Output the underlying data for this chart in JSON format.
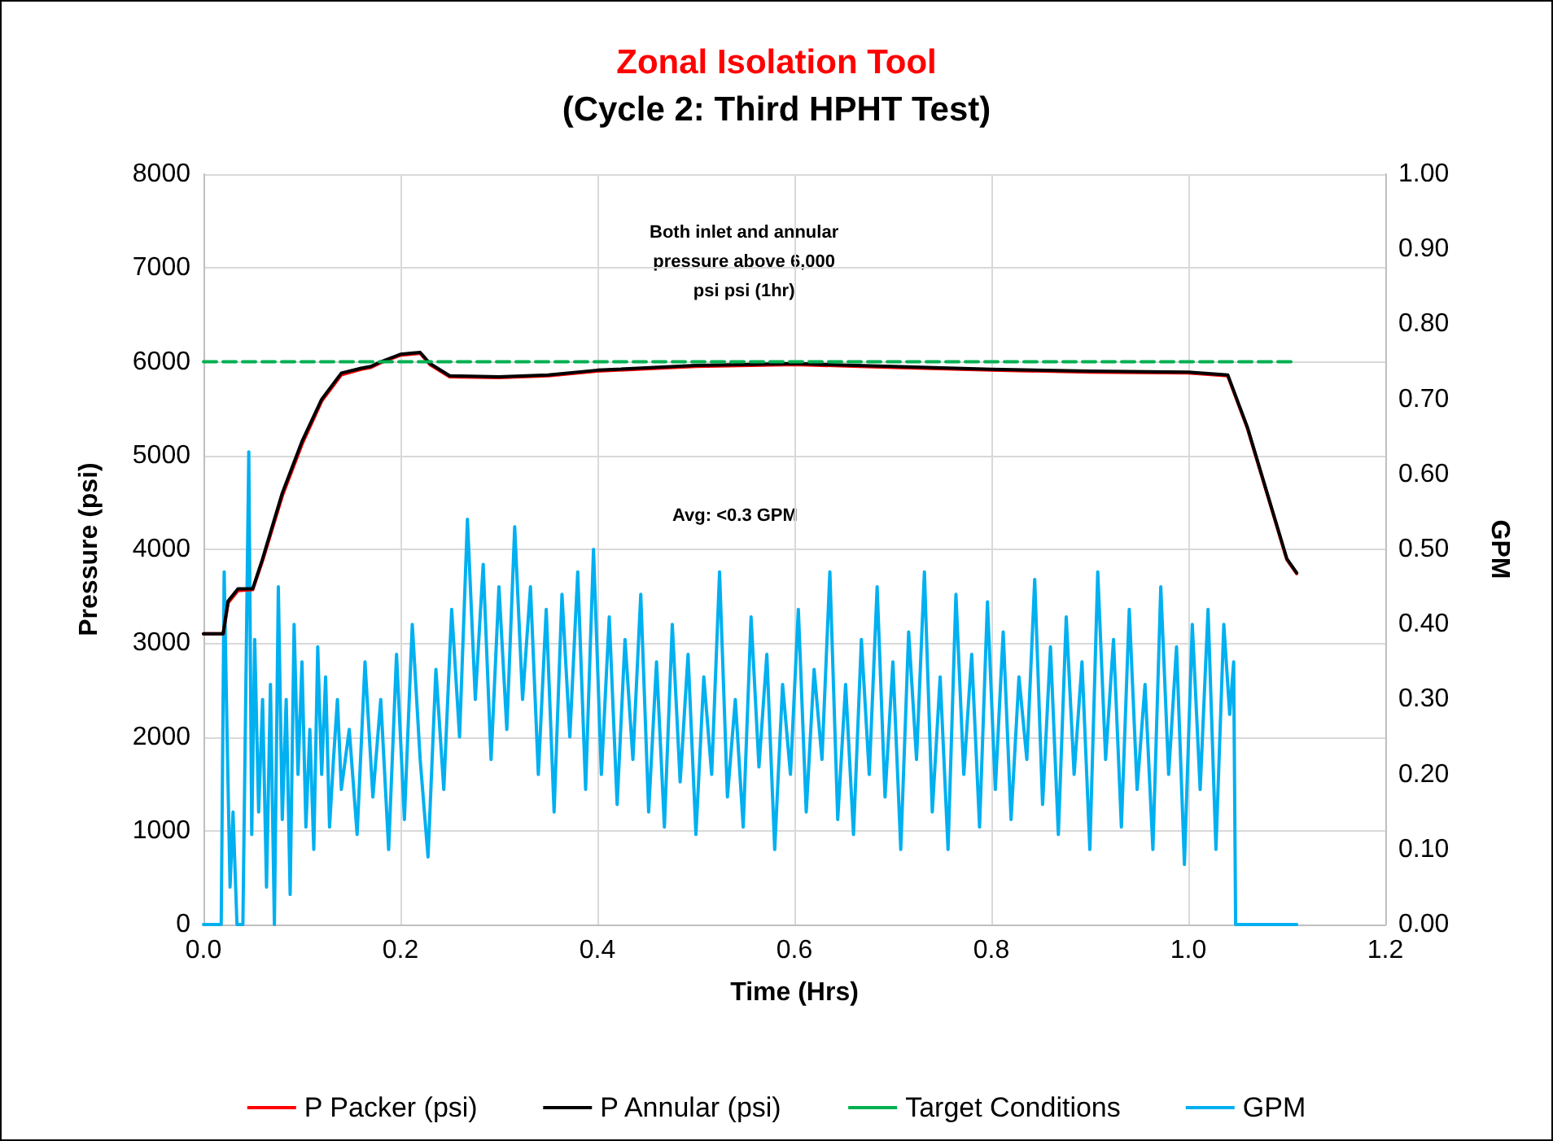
{
  "chart_data": {
    "type": "line",
    "title": "Zonal Isolation Tool",
    "subtitle": "(Cycle 2: Third HPHT Test)",
    "xlabel": "Time (Hrs)",
    "ylabel": "Pressure (psi)",
    "y2label": "GPM",
    "annotations": [
      "Both inlet and annular\npressure above 6,000\npsi psi (1hr)",
      "Avg: <0.3 GPM"
    ],
    "xlim": [
      0,
      1.2
    ],
    "xticks": [
      {
        "value": 0,
        "label": "0.0"
      },
      {
        "value": 0.2,
        "label": "0.2"
      },
      {
        "value": 0.4,
        "label": "0.4"
      },
      {
        "value": 0.6,
        "label": "0.6"
      },
      {
        "value": 0.8,
        "label": "0.8"
      },
      {
        "value": 1.0,
        "label": "1.0"
      },
      {
        "value": 1.2,
        "label": "1.2"
      }
    ],
    "ylim": [
      0,
      8000
    ],
    "yticks": [
      0,
      1000,
      2000,
      3000,
      4000,
      5000,
      6000,
      7000,
      8000
    ],
    "y2lim": [
      0,
      1
    ],
    "y2ticks": [
      {
        "value": 0,
        "label": "0.00"
      },
      {
        "value": 0.1,
        "label": "0.10"
      },
      {
        "value": 0.2,
        "label": "0.20"
      },
      {
        "value": 0.3,
        "label": "0.30"
      },
      {
        "value": 0.4,
        "label": "0.40"
      },
      {
        "value": 0.5,
        "label": "0.50"
      },
      {
        "value": 0.6,
        "label": "0.60"
      },
      {
        "value": 0.7,
        "label": "0.70"
      },
      {
        "value": 0.8,
        "label": "0.80"
      },
      {
        "value": 0.9,
        "label": "0.90"
      },
      {
        "value": 1.0,
        "label": "1.00"
      }
    ],
    "grid": true,
    "legend": "bottom",
    "marker": "none",
    "series": [
      {
        "name": "P Packer (psi)",
        "color": "#ff0000",
        "line_style": "solid",
        "x": [
          0,
          0.02,
          0.025,
          0.035,
          0.05,
          0.06,
          0.08,
          0.1,
          0.12,
          0.14,
          0.16,
          0.17,
          0.18,
          0.2,
          0.22,
          0.23,
          0.25,
          0.3,
          0.35,
          0.4,
          0.5,
          0.6,
          0.7,
          0.8,
          0.9,
          1.0,
          1.04,
          1.06,
          1.08,
          1.1,
          1.11
        ],
        "values": [
          3100,
          3100,
          3430,
          3560,
          3570,
          3880,
          4570,
          5120,
          5580,
          5860,
          5920,
          5940,
          5990,
          6070,
          6090,
          5970,
          5840,
          5830,
          5850,
          5900,
          5950,
          5970,
          5940,
          5910,
          5890,
          5880,
          5850,
          5290,
          4590,
          3890,
          3740
        ]
      },
      {
        "name": "P Annular (psi)",
        "color": "#000000",
        "line_style": "solid",
        "x": [
          0,
          0.02,
          0.025,
          0.035,
          0.05,
          0.06,
          0.08,
          0.1,
          0.12,
          0.14,
          0.16,
          0.17,
          0.18,
          0.2,
          0.22,
          0.23,
          0.25,
          0.3,
          0.35,
          0.4,
          0.5,
          0.6,
          0.7,
          0.8,
          0.9,
          1.0,
          1.04,
          1.06,
          1.08,
          1.1,
          1.11
        ],
        "values": [
          3100,
          3100,
          3450,
          3580,
          3580,
          3900,
          4600,
          5150,
          5600,
          5880,
          5930,
          5950,
          6000,
          6080,
          6100,
          5980,
          5850,
          5840,
          5860,
          5910,
          5960,
          5980,
          5950,
          5920,
          5900,
          5890,
          5860,
          5300,
          4600,
          3900,
          3750
        ]
      },
      {
        "name": "Target Conditions",
        "color": "#00b050",
        "line_style": "dashed",
        "x": [
          0,
          1.11
        ],
        "values": [
          6000,
          6000
        ]
      },
      {
        "name": "GPM",
        "color": "#00b0f0",
        "line_style": "solid",
        "axis": "y2",
        "x": [
          0,
          0.018,
          0.021,
          0.024,
          0.027,
          0.03,
          0.034,
          0.04,
          0.046,
          0.049,
          0.052,
          0.056,
          0.06,
          0.064,
          0.068,
          0.072,
          0.076,
          0.08,
          0.084,
          0.088,
          0.092,
          0.096,
          0.1,
          0.104,
          0.108,
          0.112,
          0.116,
          0.12,
          0.124,
          0.128,
          0.132,
          0.136,
          0.14,
          0.148,
          0.156,
          0.164,
          0.172,
          0.18,
          0.188,
          0.196,
          0.204,
          0.212,
          0.22,
          0.228,
          0.236,
          0.244,
          0.252,
          0.26,
          0.268,
          0.276,
          0.284,
          0.292,
          0.3,
          0.308,
          0.316,
          0.324,
          0.332,
          0.34,
          0.348,
          0.356,
          0.364,
          0.372,
          0.38,
          0.388,
          0.396,
          0.404,
          0.412,
          0.42,
          0.428,
          0.436,
          0.444,
          0.452,
          0.46,
          0.468,
          0.476,
          0.484,
          0.492,
          0.5,
          0.508,
          0.516,
          0.524,
          0.532,
          0.54,
          0.548,
          0.556,
          0.564,
          0.572,
          0.58,
          0.588,
          0.596,
          0.604,
          0.612,
          0.62,
          0.628,
          0.636,
          0.644,
          0.652,
          0.66,
          0.668,
          0.676,
          0.684,
          0.692,
          0.7,
          0.708,
          0.716,
          0.724,
          0.732,
          0.74,
          0.748,
          0.756,
          0.764,
          0.772,
          0.78,
          0.788,
          0.796,
          0.804,
          0.812,
          0.82,
          0.828,
          0.836,
          0.844,
          0.852,
          0.86,
          0.868,
          0.876,
          0.884,
          0.892,
          0.9,
          0.908,
          0.916,
          0.924,
          0.932,
          0.94,
          0.948,
          0.956,
          0.964,
          0.972,
          0.98,
          0.988,
          0.996,
          1.004,
          1.012,
          1.02,
          1.028,
          1.036,
          1.042,
          1.046,
          1.048,
          1.11
        ],
        "values": [
          0,
          0,
          0.47,
          0.25,
          0.05,
          0.15,
          0,
          0,
          0.63,
          0.12,
          0.38,
          0.15,
          0.3,
          0.05,
          0.32,
          0,
          0.45,
          0.14,
          0.3,
          0.04,
          0.4,
          0.2,
          0.35,
          0.13,
          0.26,
          0.1,
          0.37,
          0.2,
          0.33,
          0.13,
          0.22,
          0.3,
          0.18,
          0.26,
          0.12,
          0.35,
          0.17,
          0.3,
          0.1,
          0.36,
          0.14,
          0.4,
          0.22,
          0.09,
          0.34,
          0.18,
          0.42,
          0.25,
          0.54,
          0.3,
          0.48,
          0.22,
          0.45,
          0.26,
          0.53,
          0.3,
          0.45,
          0.2,
          0.42,
          0.15,
          0.44,
          0.25,
          0.47,
          0.18,
          0.5,
          0.2,
          0.41,
          0.16,
          0.38,
          0.22,
          0.44,
          0.15,
          0.35,
          0.13,
          0.4,
          0.19,
          0.36,
          0.12,
          0.33,
          0.2,
          0.47,
          0.17,
          0.3,
          0.13,
          0.41,
          0.21,
          0.36,
          0.1,
          0.32,
          0.2,
          0.42,
          0.15,
          0.34,
          0.22,
          0.47,
          0.14,
          0.32,
          0.12,
          0.38,
          0.2,
          0.45,
          0.17,
          0.35,
          0.1,
          0.39,
          0.22,
          0.47,
          0.15,
          0.33,
          0.1,
          0.44,
          0.2,
          0.36,
          0.13,
          0.43,
          0.18,
          0.39,
          0.14,
          0.33,
          0.22,
          0.46,
          0.16,
          0.37,
          0.12,
          0.41,
          0.2,
          0.35,
          0.1,
          0.47,
          0.22,
          0.38,
          0.13,
          0.42,
          0.18,
          0.32,
          0.1,
          0.45,
          0.2,
          0.37,
          0.08,
          0.4,
          0.18,
          0.42,
          0.1,
          0.4,
          0.28,
          0.35,
          0,
          0
        ]
      }
    ]
  }
}
